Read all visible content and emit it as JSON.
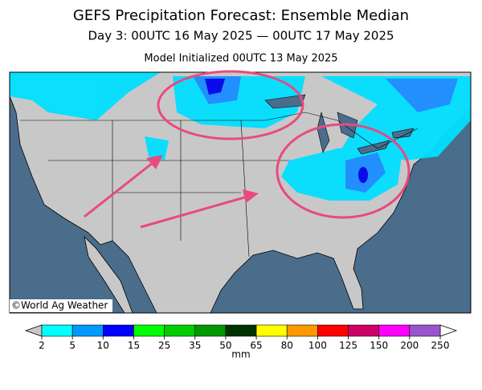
{
  "title": "GEFS Precipitation Forecast: Ensemble Median",
  "subtitle": "Day 3: 00UTC 16 May 2025 — 00UTC 17 May 2025",
  "initialized": "Model Initialized 00UTC 13 May 2025",
  "credit": "©World Ag Weather",
  "colorbar": {
    "labels": [
      2,
      5,
      10,
      15,
      25,
      35,
      50,
      65,
      80,
      100,
      125,
      150,
      200,
      250
    ],
    "colors": [
      "#00ffff",
      "#0099ff",
      "#0000ff",
      "#00ff00",
      "#00cc00",
      "#009900",
      "#003300",
      "#ffff00",
      "#ff9900",
      "#ff0000",
      "#cc0066",
      "#ff00ff",
      "#9955cc"
    ],
    "unit": "mm"
  }
}
